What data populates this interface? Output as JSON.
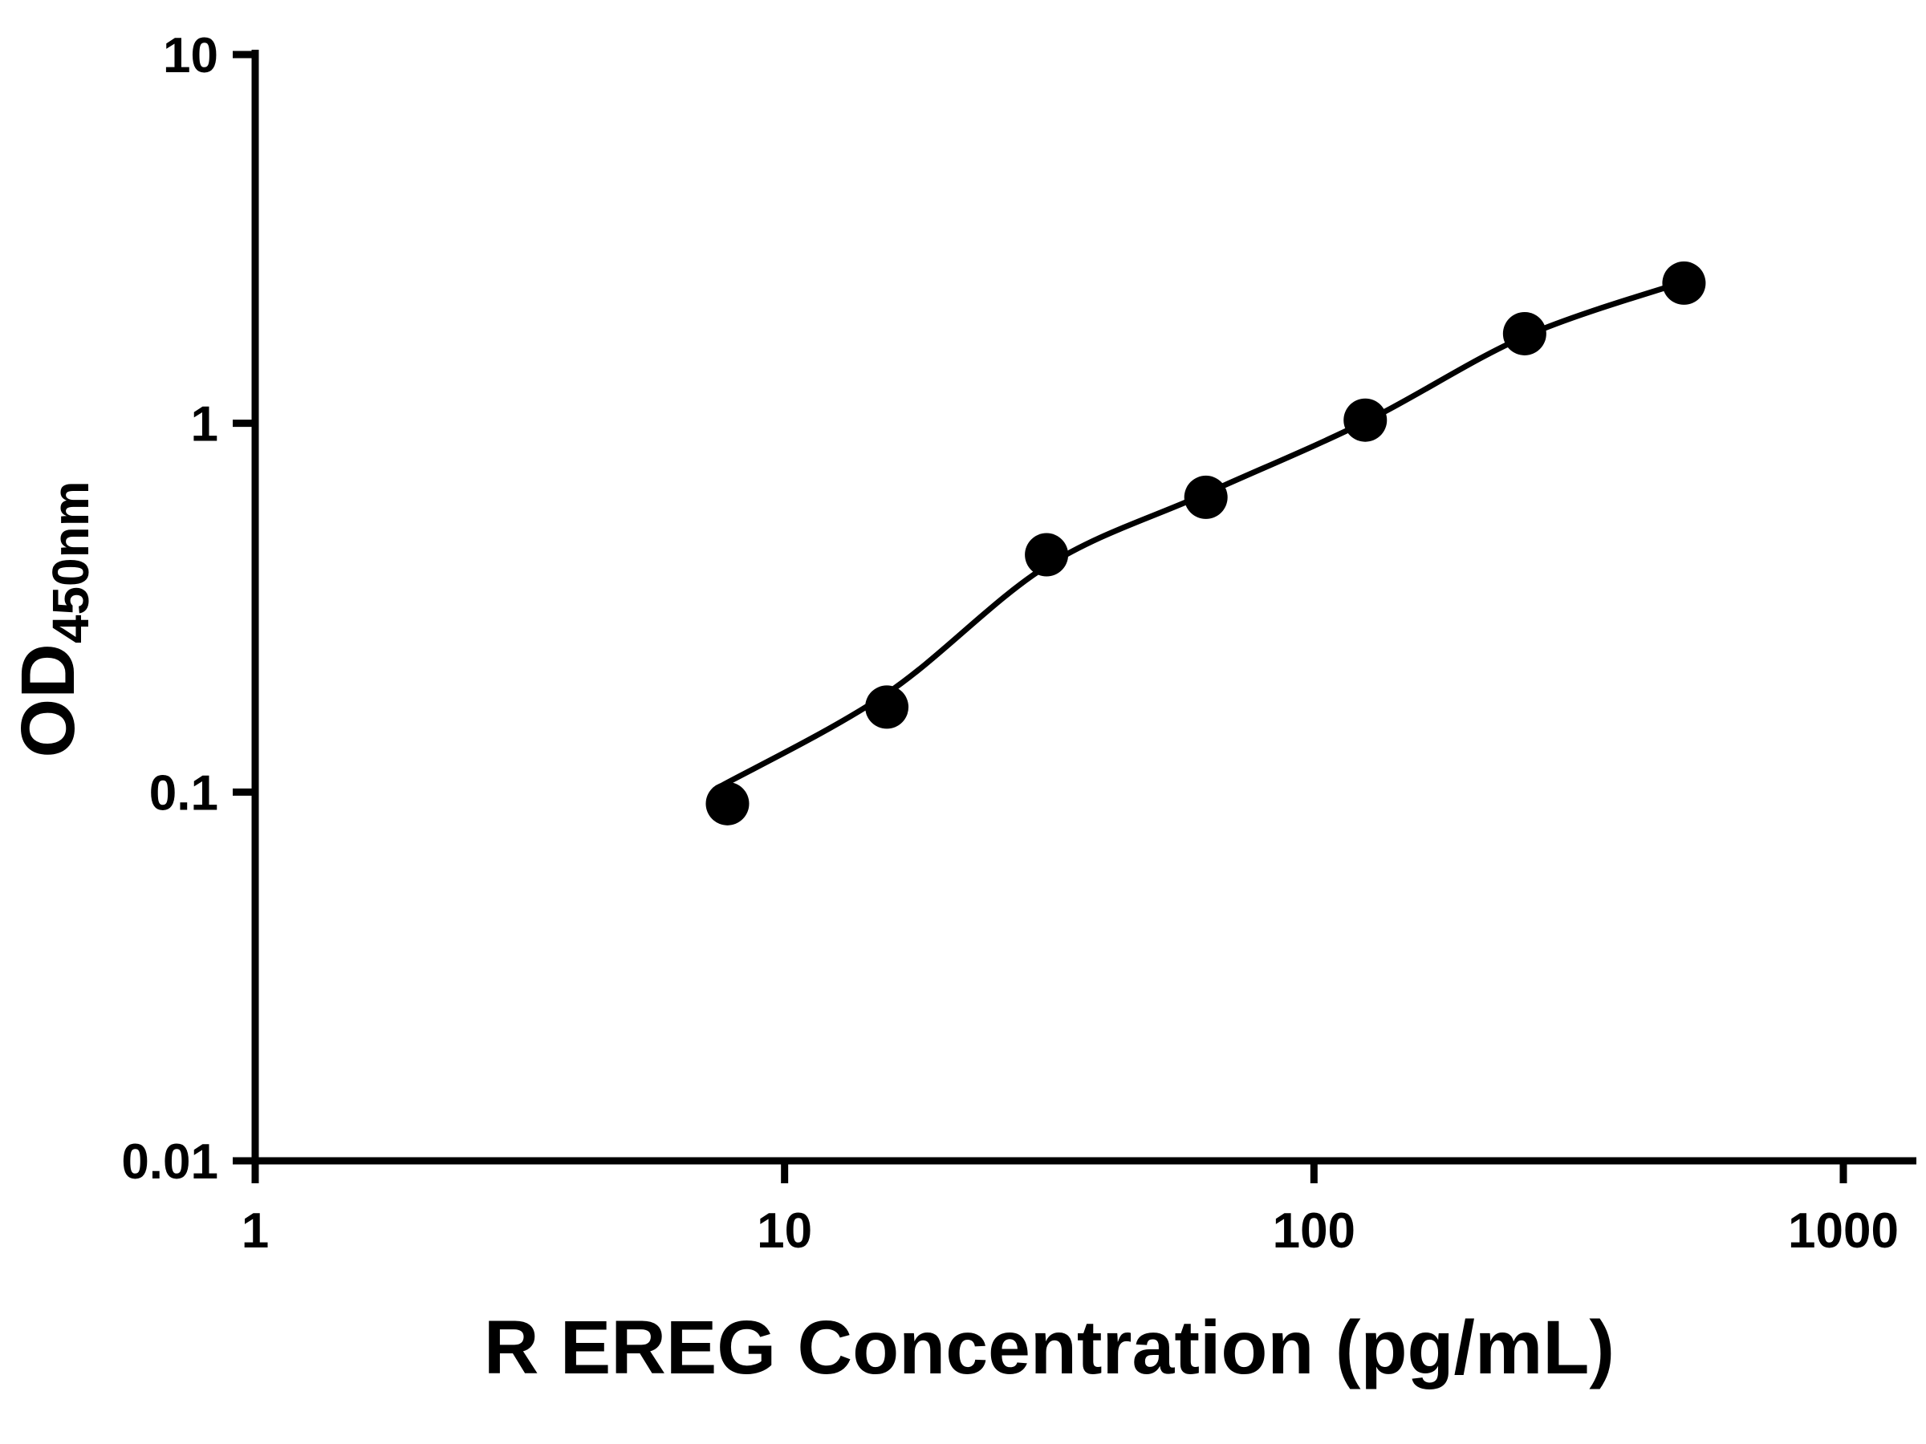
{
  "figure": {
    "background_color": "#ffffff",
    "foreground_color": "#000000"
  },
  "chart_data": {
    "type": "scatter",
    "title": "",
    "xlabel": "R EREG Concentration (pg/mL)",
    "ylabel": "OD450nm",
    "ylabel_main": "OD",
    "ylabel_subscript": "450nm",
    "x_scale": "log",
    "y_scale": "log",
    "xlim": [
      1,
      1000
    ],
    "ylim": [
      0.01,
      10
    ],
    "x_ticks": [
      1,
      10,
      100,
      1000
    ],
    "x_tick_labels": [
      "1",
      "10",
      "100",
      "1000"
    ],
    "y_ticks": [
      0.01,
      0.1,
      1,
      10
    ],
    "y_tick_labels": [
      "0.01",
      "0.1",
      "1",
      "10"
    ],
    "grid": false,
    "legend": false,
    "marker": "filled-circle",
    "marker_color": "#000000",
    "line_color": "#000000",
    "points": [
      {
        "x": 7.8,
        "y": 0.093
      },
      {
        "x": 15.6,
        "y": 0.17
      },
      {
        "x": 31.25,
        "y": 0.44
      },
      {
        "x": 62.5,
        "y": 0.63
      },
      {
        "x": 125,
        "y": 1.02
      },
      {
        "x": 250,
        "y": 1.75
      },
      {
        "x": 500,
        "y": 2.4
      }
    ],
    "fit_curve_points": [
      {
        "x": 7.6,
        "y": 0.104
      },
      {
        "x": 15.6,
        "y": 0.185
      },
      {
        "x": 31.25,
        "y": 0.41
      },
      {
        "x": 62.5,
        "y": 0.645
      },
      {
        "x": 125,
        "y": 1.01
      },
      {
        "x": 250,
        "y": 1.72
      },
      {
        "x": 500,
        "y": 2.42
      }
    ]
  }
}
